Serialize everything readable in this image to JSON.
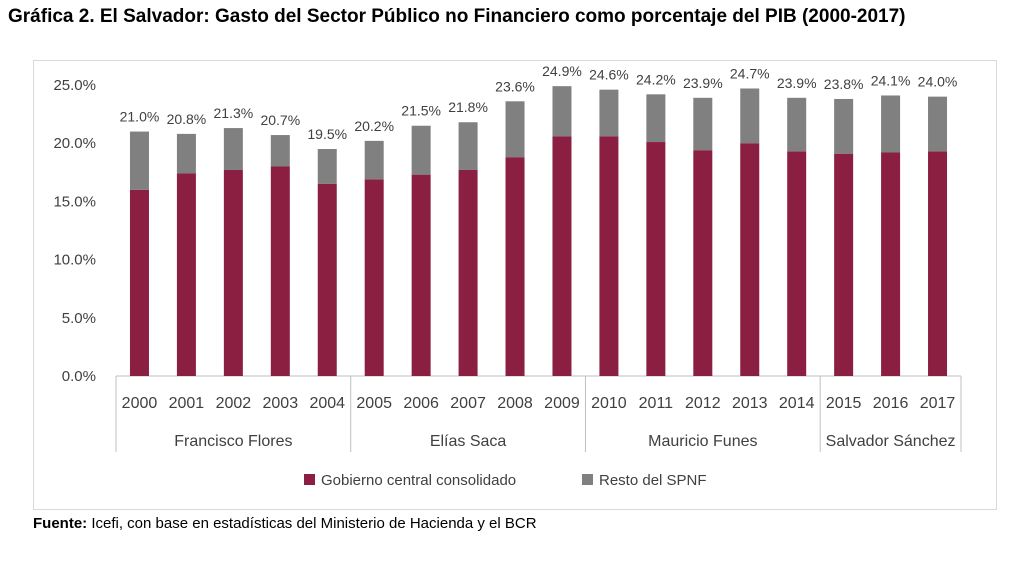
{
  "title": "Gráfica 2. El Salvador: Gasto del Sector Público no Financiero como porcentaje del PIB (2000-2017)",
  "source_label": "Fuente:",
  "source_text": " Icefi, con base en estadísticas del Ministerio de Hacienda y el BCR",
  "chart_data": {
    "type": "bar",
    "stacked": true,
    "categories": [
      "2000",
      "2001",
      "2002",
      "2003",
      "2004",
      "2005",
      "2006",
      "2007",
      "2008",
      "2009",
      "2010",
      "2011",
      "2012",
      "2013",
      "2014",
      "2015",
      "2016",
      "2017"
    ],
    "groups": [
      {
        "label": "Francisco Flores",
        "span": 5
      },
      {
        "label": "Elías Saca",
        "span": 5
      },
      {
        "label": "Mauricio Funes",
        "span": 5
      },
      {
        "label": "Salvador Sánchez",
        "span": 3
      }
    ],
    "series": [
      {
        "name": "Gobierno central consolidado",
        "color": "#8b1f41",
        "values": [
          16.0,
          17.4,
          17.7,
          18.0,
          16.5,
          16.9,
          17.3,
          17.7,
          18.8,
          20.6,
          20.6,
          20.1,
          19.4,
          20.0,
          19.3,
          19.1,
          19.2,
          19.3
        ]
      },
      {
        "name": "Resto del SPNF",
        "color": "#808080",
        "values": [
          5.0,
          3.4,
          3.6,
          2.7,
          3.0,
          3.3,
          4.2,
          4.1,
          4.8,
          4.3,
          4.0,
          4.1,
          4.5,
          4.7,
          4.6,
          4.7,
          4.9,
          4.7
        ]
      }
    ],
    "totals_labels": [
      "21.0%",
      "20.8%",
      "21.3%",
      "20.7%",
      "19.5%",
      "20.2%",
      "21.5%",
      "21.8%",
      "23.6%",
      "24.9%",
      "24.6%",
      "24.2%",
      "23.9%",
      "24.7%",
      "23.9%",
      "23.8%",
      "24.1%",
      "24.0%"
    ],
    "totals": [
      21.0,
      20.8,
      21.3,
      20.7,
      19.5,
      20.2,
      21.5,
      21.8,
      23.6,
      24.9,
      24.6,
      24.2,
      23.9,
      24.7,
      23.9,
      23.8,
      24.1,
      24.0
    ],
    "ylim": [
      0,
      25
    ],
    "yticks": [
      "0.0%",
      "5.0%",
      "10.0%",
      "15.0%",
      "20.0%",
      "25.0%"
    ],
    "grid": false,
    "legend_position": "bottom"
  }
}
